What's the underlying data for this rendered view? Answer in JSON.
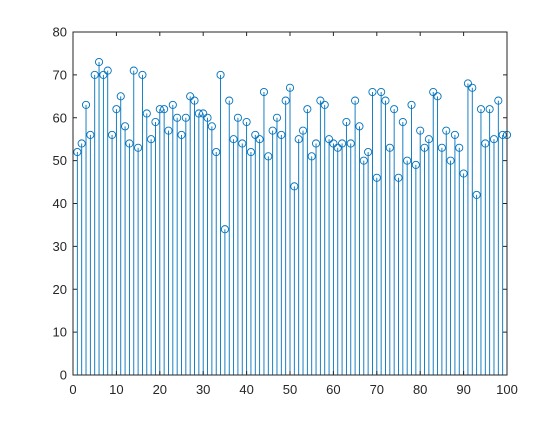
{
  "chart_data": {
    "type": "stem",
    "x": [
      1,
      2,
      3,
      4,
      5,
      6,
      7,
      8,
      9,
      10,
      11,
      12,
      13,
      14,
      15,
      16,
      17,
      18,
      19,
      20,
      21,
      22,
      23,
      24,
      25,
      26,
      27,
      28,
      29,
      30,
      31,
      32,
      33,
      34,
      35,
      36,
      37,
      38,
      39,
      40,
      41,
      42,
      43,
      44,
      45,
      46,
      47,
      48,
      49,
      50,
      51,
      52,
      53,
      54,
      55,
      56,
      57,
      58,
      59,
      60,
      61,
      62,
      63,
      64,
      65,
      66,
      67,
      68,
      69,
      70,
      71,
      72,
      73,
      74,
      75,
      76,
      77,
      78,
      79,
      80,
      81,
      82,
      83,
      84,
      85,
      86,
      87,
      88,
      89,
      90,
      91,
      92,
      93,
      94,
      95,
      96,
      97,
      98,
      99,
      100
    ],
    "y": [
      52,
      54,
      63,
      56,
      70,
      73,
      70,
      71,
      56,
      62,
      65,
      58,
      54,
      71,
      53,
      70,
      61,
      55,
      59,
      62,
      62,
      57,
      63,
      60,
      56,
      60,
      65,
      64,
      61,
      61,
      60,
      58,
      52,
      70,
      34,
      64,
      55,
      60,
      54,
      59,
      52,
      56,
      55,
      66,
      51,
      57,
      60,
      56,
      64,
      67,
      44,
      55,
      57,
      62,
      51,
      54,
      64,
      63,
      55,
      54,
      53,
      54,
      59,
      54,
      64,
      58,
      50,
      52,
      66,
      46,
      66,
      64,
      53,
      62,
      46,
      59,
      50,
      63,
      49,
      57,
      53,
      55,
      66,
      65,
      53,
      57,
      50,
      56,
      53,
      47,
      68,
      67,
      42,
      62,
      54,
      62,
      55,
      64,
      56,
      56
    ],
    "xlim": [
      0,
      100
    ],
    "ylim": [
      0,
      80
    ],
    "xticks": [
      0,
      10,
      20,
      30,
      40,
      50,
      60,
      70,
      80,
      90,
      100
    ],
    "yticks": [
      0,
      10,
      20,
      30,
      40,
      50,
      60,
      70,
      80
    ],
    "title": "",
    "xlabel": "",
    "ylabel": "",
    "grid": false,
    "marker": "open-circle",
    "color": "#0072BD"
  }
}
